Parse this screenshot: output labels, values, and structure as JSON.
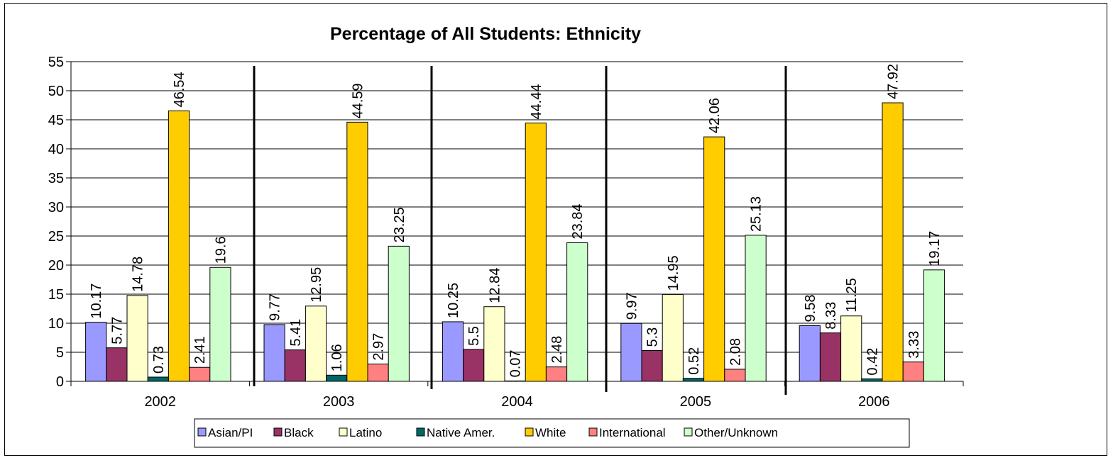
{
  "chart_data": {
    "type": "bar",
    "title": "Percentage of All Students: Ethnicity",
    "xlabel": "",
    "ylabel": "",
    "ylim": [
      0,
      55
    ],
    "y_ticks": [
      "0",
      "5",
      "10",
      "15",
      "20",
      "25",
      "30",
      "35",
      "40",
      "45",
      "50",
      "55"
    ],
    "grid": true,
    "legend_position": "bottom",
    "categories": [
      "2002",
      "2003",
      "2004",
      "2005",
      "2006"
    ],
    "series": [
      {
        "name": "Asian/PI",
        "color": "#9999ff",
        "values": [
          10.17,
          9.77,
          10.25,
          9.97,
          9.58
        ],
        "labels": [
          "10.17",
          "9.77",
          "10.25",
          "9.97",
          "9.58"
        ]
      },
      {
        "name": "Black",
        "color": "#993366",
        "values": [
          5.77,
          5.41,
          5.5,
          5.3,
          8.33
        ],
        "labels": [
          "5.77",
          "5.41",
          "5.5",
          "5.3",
          "8.33"
        ]
      },
      {
        "name": "Latino",
        "color": "#ffffcc",
        "values": [
          14.78,
          12.95,
          12.84,
          14.95,
          11.25
        ],
        "labels": [
          "14.78",
          "12.95",
          "12.84",
          "14.95",
          "11.25"
        ]
      },
      {
        "name": "Native Amer.",
        "color": "#006666",
        "values": [
          0.73,
          1.06,
          0.07,
          0.52,
          0.42
        ],
        "labels": [
          "0.73",
          "1.06",
          "0.07",
          "0.52",
          "0.42"
        ]
      },
      {
        "name": "White",
        "color": "#ffcc00",
        "values": [
          46.54,
          44.59,
          44.44,
          42.06,
          47.92
        ],
        "labels": [
          "46.54",
          "44.59",
          "44.44",
          "42.06",
          "47.92"
        ]
      },
      {
        "name": "International",
        "color": "#ff8080",
        "values": [
          2.41,
          2.97,
          2.48,
          2.08,
          3.33
        ],
        "labels": [
          "2.41",
          "2.97",
          "2.48",
          "2.08",
          "3.33"
        ]
      },
      {
        "name": "Other/Unknown",
        "color": "#ccffcc",
        "values": [
          19.6,
          23.25,
          23.84,
          25.13,
          19.17
        ],
        "labels": [
          "19.6",
          "23.25",
          "23.84",
          "25.13",
          "19.17"
        ]
      }
    ]
  }
}
